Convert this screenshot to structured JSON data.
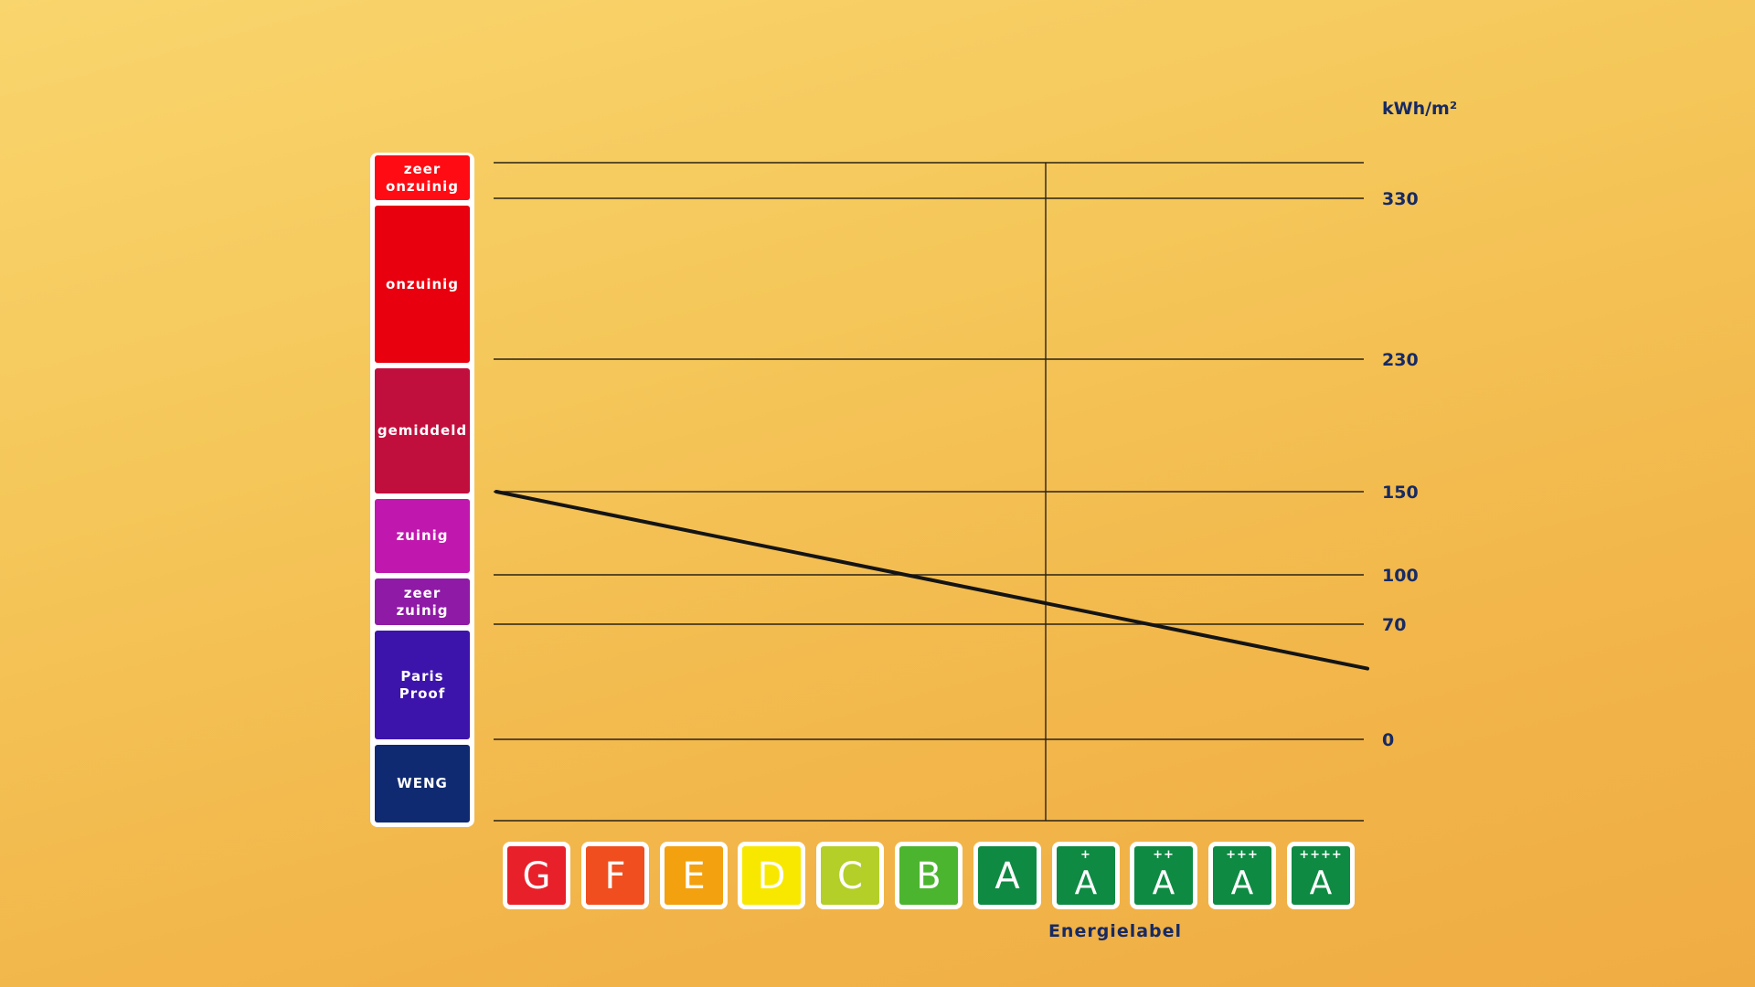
{
  "chart_data": {
    "type": "line",
    "unit": "kWh/m²",
    "xlabel": "Energielabel",
    "y_ticks": [
      330,
      230,
      150,
      100,
      70,
      0
    ],
    "grid": true,
    "series": [
      {
        "x": [
          "G",
          "A++++"
        ],
        "y": [
          150,
          43
        ]
      }
    ],
    "bands": [
      {
        "label": "zeer\nonzuinig",
        "color": "#ff0b13"
      },
      {
        "label": "onzuinig",
        "color": "#e8000e"
      },
      {
        "label": "gemiddeld",
        "color": "#c10f3d"
      },
      {
        "label": "zuinig",
        "color": "#c018ae"
      },
      {
        "label": "zeer\nzuinig",
        "color": "#8f1aa6"
      },
      {
        "label": "Paris\nProof",
        "color": "#3d14ab"
      },
      {
        "label": "WENG",
        "color": "#0f2a70"
      }
    ],
    "energy_labels": [
      {
        "letter": "G",
        "sup": "",
        "color": "#e8202a"
      },
      {
        "letter": "F",
        "sup": "",
        "color": "#f04e1e"
      },
      {
        "letter": "E",
        "sup": "",
        "color": "#f3a10e"
      },
      {
        "letter": "D",
        "sup": "",
        "color": "#f8e800"
      },
      {
        "letter": "C",
        "sup": "",
        "color": "#b3cf28"
      },
      {
        "letter": "B",
        "sup": "",
        "color": "#4cb52f"
      },
      {
        "letter": "A",
        "sup": "",
        "color": "#0e8a43"
      },
      {
        "letter": "A",
        "sup": "+",
        "color": "#0e8a43"
      },
      {
        "letter": "A",
        "sup": "++",
        "color": "#0e8a43"
      },
      {
        "letter": "A",
        "sup": "+++",
        "color": "#0e8a43"
      },
      {
        "letter": "A",
        "sup": "++++",
        "color": "#0e8a43"
      }
    ],
    "colors": {
      "text": "#172a63",
      "grid": "#2a2215",
      "line": "#141414"
    }
  }
}
